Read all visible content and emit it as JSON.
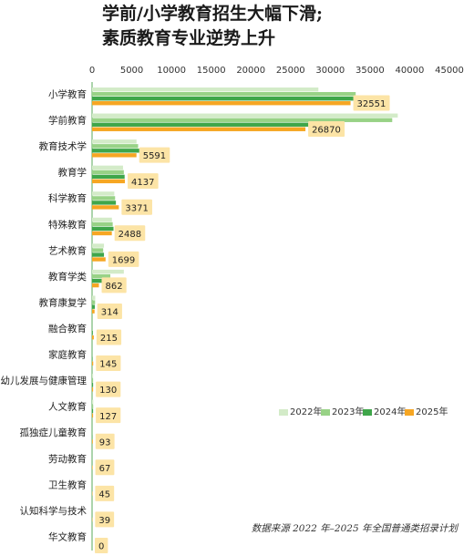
{
  "title_lines": [
    "学前/小学教育招生大幅下滑;",
    "素质教育专业逆势上升"
  ],
  "source": "数据来源  2022 年–2025 年全国普通类招录计划",
  "colors": {
    "s2022": "#d3ebc8",
    "s2023": "#98d286",
    "s2024": "#3fa64a",
    "s2025": "#f6a623",
    "label_bg": "#fce4a6",
    "axis": "#5aa85a"
  },
  "chart_data": {
    "type": "bar",
    "orientation": "horizontal",
    "title": "学前/小学教育招生大幅下滑; 素质教育专业逆势上升",
    "xlim": [
      0,
      45000
    ],
    "xticks": [
      0,
      5000,
      10000,
      15000,
      20000,
      25000,
      30000,
      35000,
      40000,
      45000
    ],
    "categories": [
      "小学教育",
      "学前教育",
      "教育技术学",
      "教育学",
      "科学教育",
      "特殊教育",
      "艺术教育",
      "教育学类",
      "教育康复学",
      "融合教育",
      "家庭教育",
      "幼儿发展与健康管理",
      "人文教育",
      "孤独症儿童教育",
      "劳动教育",
      "卫生教育",
      "认知科学与技术",
      "华文教育"
    ],
    "series": [
      {
        "name": "2022年",
        "values": [
          28500,
          38500,
          5600,
          3900,
          2800,
          2500,
          1500,
          4000,
          400,
          0,
          0,
          130,
          150,
          0,
          0,
          0,
          0,
          0
        ]
      },
      {
        "name": "2023年",
        "values": [
          33200,
          37800,
          5800,
          4000,
          2900,
          2600,
          1400,
          2300,
          380,
          0,
          0,
          130,
          140,
          0,
          0,
          0,
          0,
          0
        ]
      },
      {
        "name": "2024年",
        "values": [
          33300,
          31800,
          6100,
          4100,
          3000,
          2700,
          1500,
          1700,
          350,
          100,
          70,
          130,
          130,
          60,
          30,
          20,
          20,
          0
        ]
      },
      {
        "name": "2025年",
        "values": [
          32551,
          26870,
          5591,
          4137,
          3371,
          2488,
          1699,
          862,
          314,
          215,
          145,
          130,
          127,
          93,
          67,
          45,
          39,
          0
        ]
      }
    ],
    "data_labels": [
      "32551",
      "26870",
      "5591",
      "4137",
      "3371",
      "2488",
      "1699",
      "862",
      "314",
      "215",
      "145",
      "130",
      "127",
      "93",
      "67",
      "45",
      "39",
      "0"
    ],
    "legend": [
      "2022年",
      "2023年",
      "2024年",
      "2025年"
    ],
    "legend_position": "lower-right",
    "grid": false
  }
}
